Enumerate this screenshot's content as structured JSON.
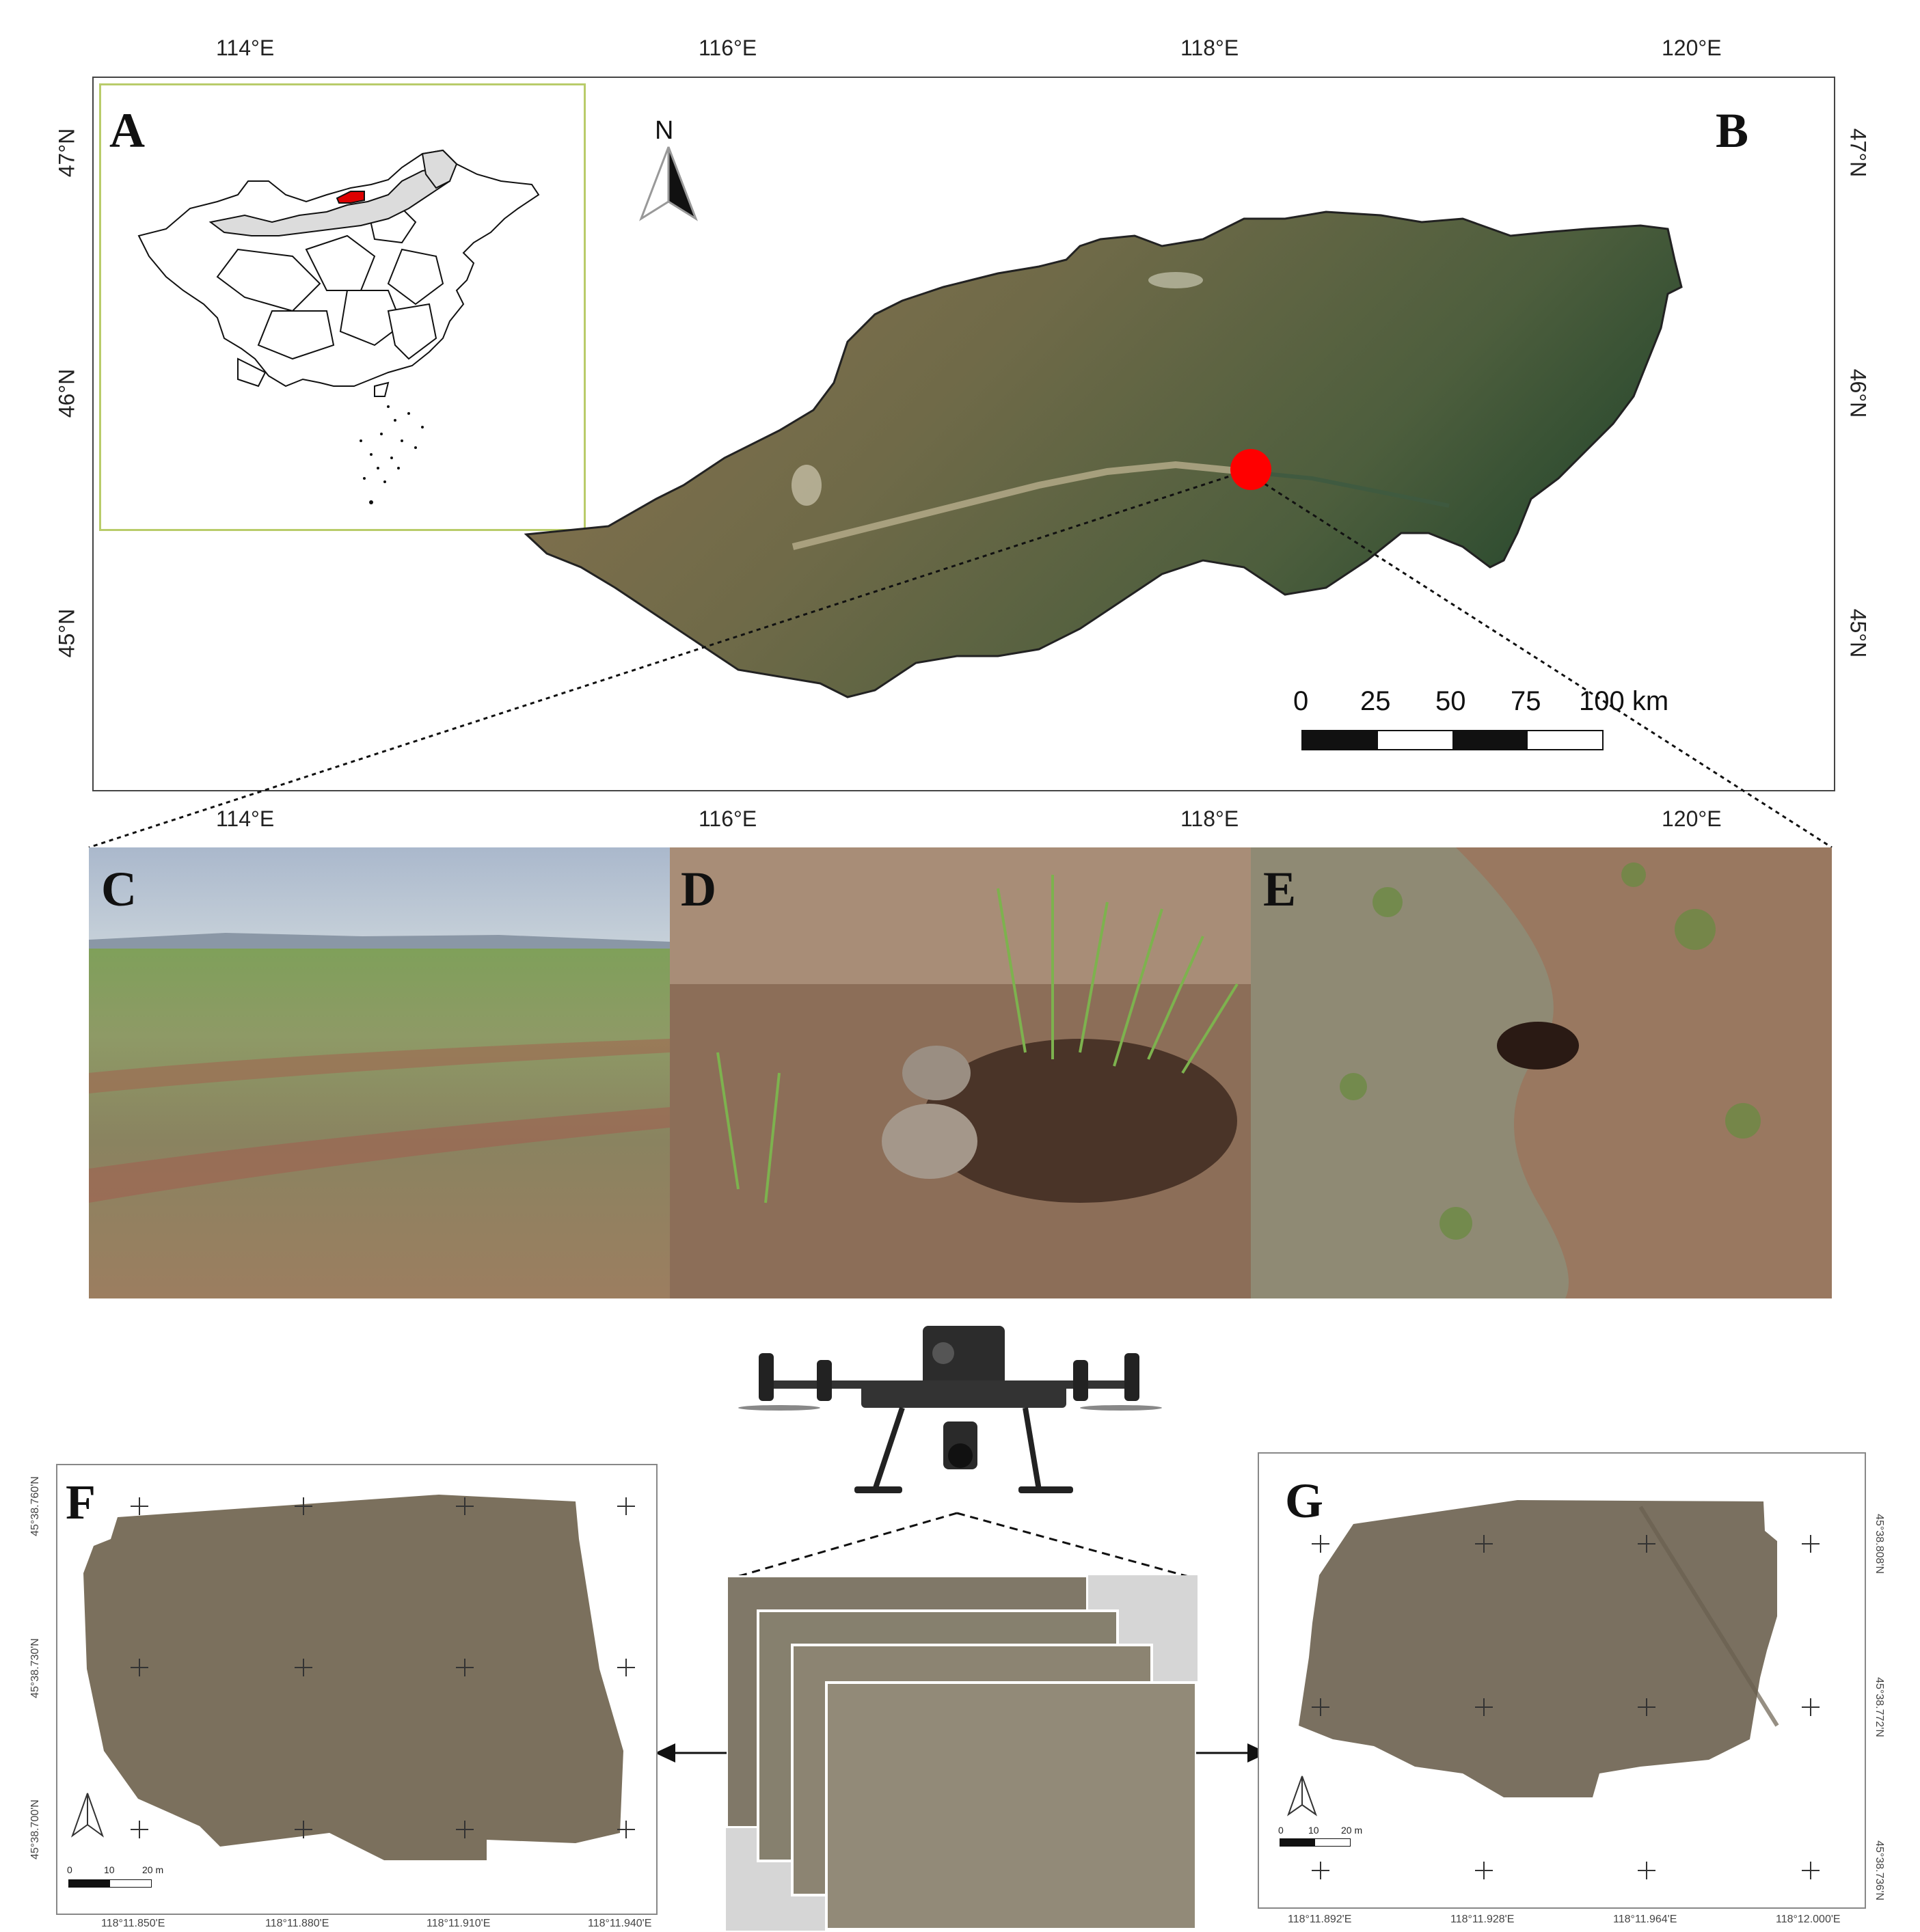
{
  "panels": {
    "a": "A",
    "b": "B",
    "c": "C",
    "d": "D",
    "e": "E",
    "f": "F",
    "g": "G"
  },
  "map_b": {
    "north_label": "N",
    "lon_ticks": [
      "114°E",
      "116°E",
      "118°E",
      "120°E"
    ],
    "lat_ticks": [
      "47°N",
      "46°N",
      "45°N"
    ],
    "scale": {
      "labels": [
        "0",
        "25",
        "50",
        "75",
        "100 km"
      ]
    },
    "study_site_marker_color": "#ff0000",
    "inset_highlight_color": "#dd0000"
  },
  "map_f": {
    "lon_ticks": [
      "118°11.850'E",
      "118°11.880'E",
      "118°11.910'E",
      "118°11.940'E"
    ],
    "lat_ticks": [
      "45°38.760'N",
      "45°38.730'N",
      "45°38.700'N"
    ],
    "scale": {
      "labels": [
        "0",
        "10",
        "20 m"
      ]
    }
  },
  "map_g": {
    "lon_ticks": [
      "118°11.892'E",
      "118°11.928'E",
      "118°11.964'E",
      "118°12.000'E"
    ],
    "lat_ticks": [
      "45°38.808'N",
      "45°38.772'N",
      "45°38.736'N"
    ],
    "scale": {
      "labels": [
        "0",
        "10",
        "20 m"
      ]
    }
  }
}
